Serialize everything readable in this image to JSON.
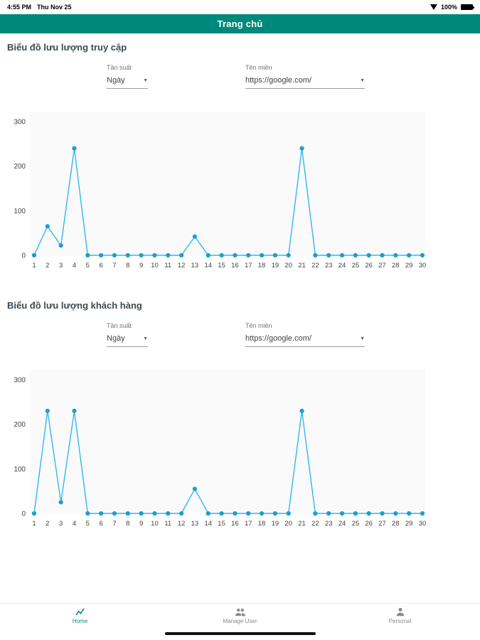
{
  "status_bar": {
    "time": "4:55 PM",
    "date": "Thu Nov 25",
    "battery_pct": "100%"
  },
  "app_bar": {
    "title": "Trang chủ"
  },
  "sections": [
    {
      "title": "Biểu đồ lưu lượng truy cập",
      "frequency": {
        "label": "Tần suất",
        "value": "Ngày"
      },
      "domain": {
        "label": "Tên miền",
        "value": "https://google.com/"
      }
    },
    {
      "title": "Biểu đồ lưu lượng khách hàng",
      "frequency": {
        "label": "Tần suất",
        "value": "Ngày"
      },
      "domain": {
        "label": "Tên miền",
        "value": "https://google.com/"
      }
    }
  ],
  "chart_data": [
    {
      "type": "line",
      "title": "Biểu đồ lưu lượng truy cập",
      "x": [
        1,
        2,
        3,
        4,
        5,
        6,
        7,
        8,
        9,
        10,
        11,
        12,
        13,
        14,
        15,
        16,
        17,
        18,
        19,
        20,
        21,
        22,
        23,
        24,
        25,
        26,
        27,
        28,
        29,
        30
      ],
      "values": [
        0,
        65,
        22,
        240,
        0,
        0,
        0,
        0,
        0,
        0,
        0,
        0,
        42,
        0,
        0,
        0,
        0,
        0,
        0,
        0,
        240,
        0,
        0,
        0,
        0,
        0,
        0,
        0,
        0,
        0
      ],
      "xlabel": "",
      "ylabel": "",
      "ylim": [
        0,
        300
      ],
      "yticks": [
        0,
        100,
        200,
        300
      ],
      "grid": false,
      "legend": "none",
      "line_color": "#33b9e8",
      "dot_color": "#1a9ed2",
      "bg_color": "#fafafa"
    },
    {
      "type": "line",
      "title": "Biểu đồ lưu lượng khách hàng",
      "x": [
        1,
        2,
        3,
        4,
        5,
        6,
        7,
        8,
        9,
        10,
        11,
        12,
        13,
        14,
        15,
        16,
        17,
        18,
        19,
        20,
        21,
        22,
        23,
        24,
        25,
        26,
        27,
        28,
        29,
        30
      ],
      "values": [
        0,
        230,
        25,
        230,
        0,
        0,
        0,
        0,
        0,
        0,
        0,
        0,
        55,
        0,
        0,
        0,
        0,
        0,
        0,
        0,
        230,
        0,
        0,
        0,
        0,
        0,
        0,
        0,
        0,
        0
      ],
      "xlabel": "",
      "ylabel": "",
      "ylim": [
        0,
        300
      ],
      "yticks": [
        0,
        100,
        200,
        300
      ],
      "grid": false,
      "legend": "none",
      "line_color": "#33b9e8",
      "dot_color": "#1a9ed2",
      "bg_color": "#fafafa"
    }
  ],
  "bottom_nav": {
    "items": [
      {
        "label": "Home",
        "active": true
      },
      {
        "label": "Manage User",
        "active": false
      },
      {
        "label": "Personal",
        "active": false
      }
    ]
  },
  "colors": {
    "app_bar": "#00897b",
    "nav_active": "#00897b",
    "nav_inactive": "#8a8a8a",
    "chart_line": "#33b9e8",
    "chart_bg": "#fafafa"
  }
}
